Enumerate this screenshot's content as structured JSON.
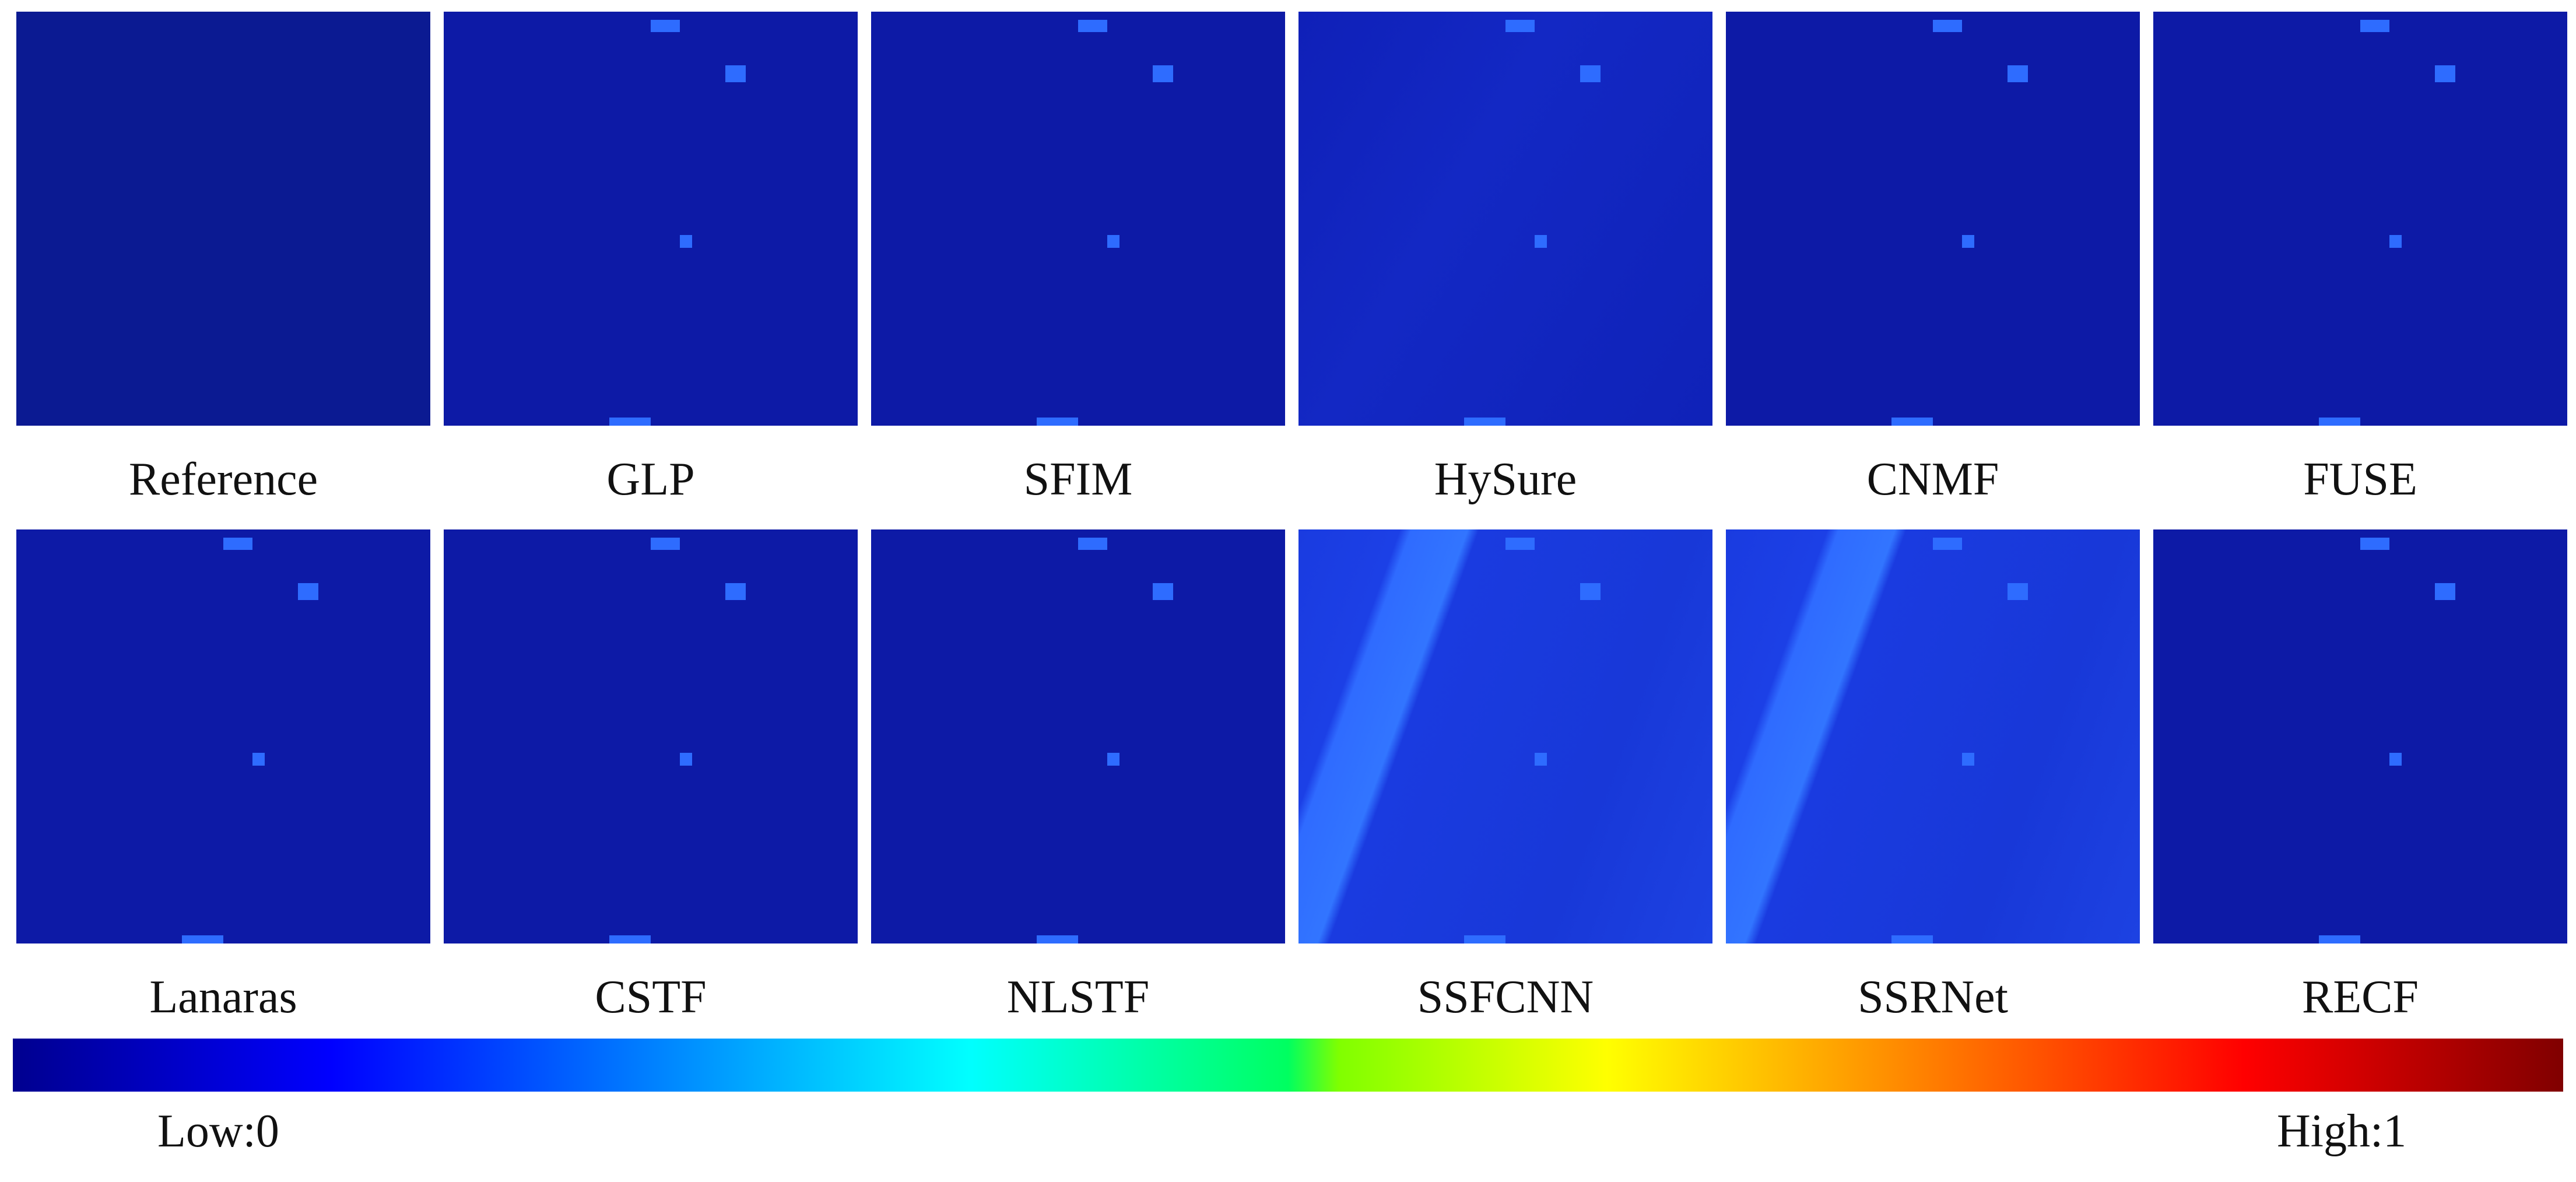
{
  "panels": [
    {
      "label": "Reference"
    },
    {
      "label": "GLP"
    },
    {
      "label": "SFIM"
    },
    {
      "label": "HySure"
    },
    {
      "label": "CNMF"
    },
    {
      "label": "FUSE"
    },
    {
      "label": "Lanaras"
    },
    {
      "label": "CSTF"
    },
    {
      "label": "NLSTF"
    },
    {
      "label": "SSFCNN"
    },
    {
      "label": "SSRNet"
    },
    {
      "label": "RECF"
    }
  ],
  "colorbar": {
    "low_label": "Low:0",
    "high_label": "High:1"
  }
}
